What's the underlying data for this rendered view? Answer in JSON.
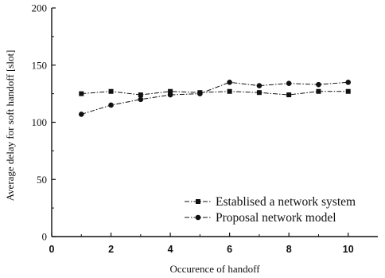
{
  "chart_data": {
    "type": "line",
    "title": "",
    "xlabel": "Occurence of handoff",
    "ylabel": "Average delay for soft handoff [slot]",
    "xlim": [
      0,
      11
    ],
    "ylim": [
      0,
      200
    ],
    "x_ticks": [
      0,
      2,
      4,
      6,
      8,
      10
    ],
    "y_ticks": [
      0,
      50,
      100,
      150,
      200
    ],
    "grid": false,
    "legend_position": "bottom-right",
    "x": [
      1,
      2,
      3,
      4,
      5,
      6,
      7,
      8,
      9,
      10
    ],
    "series": [
      {
        "name": "Establised a network system",
        "marker": "square",
        "line_style": "dash-dot",
        "color": "#111111",
        "values": [
          125,
          127,
          124,
          127,
          126,
          127,
          126,
          124,
          127,
          127
        ]
      },
      {
        "name": "Proposal network model",
        "marker": "circle",
        "line_style": "dash-dot",
        "color": "#111111",
        "values": [
          107,
          115,
          120,
          124,
          125,
          135,
          132,
          134,
          133,
          135
        ]
      }
    ]
  }
}
